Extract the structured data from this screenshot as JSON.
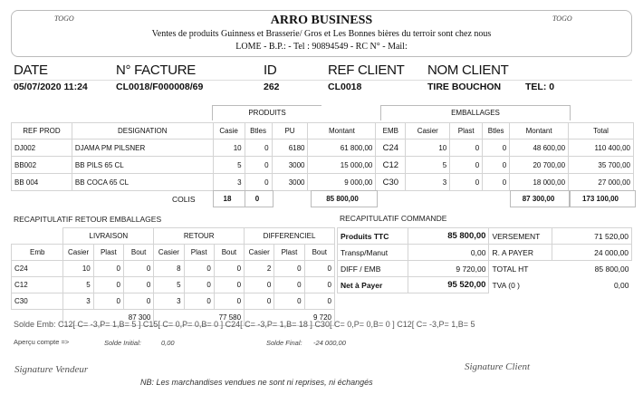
{
  "header": {
    "country_left": "TOGO",
    "country_right": "TOGO",
    "company": "ARRO BUSINESS",
    "tagline": "Ventes de produits Guinness et Brasserie/ Gros et Les Bonnes bières du terroir sont chez nous",
    "address": "LOME - B.P.:  - Tel : 90894549 - RC N°   - Mail:"
  },
  "info": {
    "labels": [
      "DATE",
      "N° FACTURE",
      "ID",
      "REF CLIENT",
      "NOM CLIENT"
    ],
    "date": "05/07/2020 11:24",
    "facture": "CL0018/F000008/69",
    "id": "262",
    "ref_client": "CL0018",
    "nom_client": "TIRE BOUCHON",
    "tel": "TEL:  0"
  },
  "lines": {
    "group_produits": "PRODUITS",
    "group_emballages": "EMBALLAGES",
    "columns": [
      "REF PROD",
      "DESIGNATION",
      "Casie",
      "Btles",
      "PU",
      "Montant",
      "EMB",
      "Casier",
      "Plast",
      "Btles",
      "Montant",
      "Total"
    ],
    "rows": [
      [
        "DJ002",
        "DJAMA PM PILSNER",
        "10",
        "0",
        "6180",
        "61 800,00",
        "C24",
        "10",
        "0",
        "0",
        "48 600,00",
        "110 400,00"
      ],
      [
        "BB002",
        "BB PILS 65 CL",
        "5",
        "0",
        "3000",
        "15 000,00",
        "C12",
        "5",
        "0",
        "0",
        "20 700,00",
        "35 700,00"
      ],
      [
        "BB 004",
        "BB COCA 65 CL",
        "3",
        "0",
        "3000",
        "9 000,00",
        "C30",
        "3",
        "0",
        "0",
        "18 000,00",
        "27 000,00"
      ]
    ],
    "colis_label": "COLIS",
    "colis_casie": "18",
    "colis_btles": "0",
    "total_produits": "85  800,00",
    "total_emballages": "87  300,00",
    "total_general": "173  100,00"
  },
  "recap_emb": {
    "title": "RECAPITULATIF RETOUR EMBALLAGES",
    "groups": [
      "LIVRAISON",
      "RETOUR",
      "DIFFERENCIEL"
    ],
    "columns": [
      "Emb",
      "Casier",
      "Plast",
      "Bout",
      "Casier",
      "Plast",
      "Bout",
      "Casier",
      "Plast",
      "Bout"
    ],
    "rows": [
      [
        "C24",
        "10",
        "0",
        "0",
        "8",
        "0",
        "0",
        "2",
        "0",
        "0"
      ],
      [
        "C12",
        "5",
        "0",
        "0",
        "5",
        "0",
        "0",
        "0",
        "0",
        "0"
      ],
      [
        "C30",
        "3",
        "0",
        "0",
        "3",
        "0",
        "0",
        "0",
        "0",
        "0"
      ]
    ],
    "totals": [
      "87 300",
      "77 580",
      "9 720"
    ]
  },
  "recap_cmd": {
    "title": "RECAPITULATIF COMMANDE",
    "rows": [
      [
        "Produits TTC",
        "85  800,00",
        "VERSEMENT",
        "71 520,00"
      ],
      [
        "Transp/Manut",
        "0,00",
        "R. A PAYER",
        "24 000,00"
      ],
      [
        "DIFF / EMB",
        "9 720,00",
        "TOTAL HT",
        "85 800,00"
      ],
      [
        "Net à Payer",
        "95  520,00",
        "TVA (0 )",
        "0,00"
      ]
    ]
  },
  "footer": {
    "solde_emb": "Solde Emb:   C12[ C= -3,P= 1,B= 5 ]    C15[ C= 0,P= 0,B= 0 ]    C24[ C= -3,P= 1,B= 18 ]    C30[ C= 0,P= 0,B= 0 ]        C12[ C= -3,P= 1,B= 5",
    "apercu": "Aperçu compte =>",
    "solde_initial_label": "Solde Initial:",
    "solde_initial": "0,00",
    "solde_final_label": "Solde Final:",
    "solde_final": "-24 000,00",
    "sig_vendeur": "Signature Vendeur",
    "sig_client": "Signature Client",
    "nb": "NB: Les marchandises vendues ne sont ni reprises, ni échangés"
  }
}
